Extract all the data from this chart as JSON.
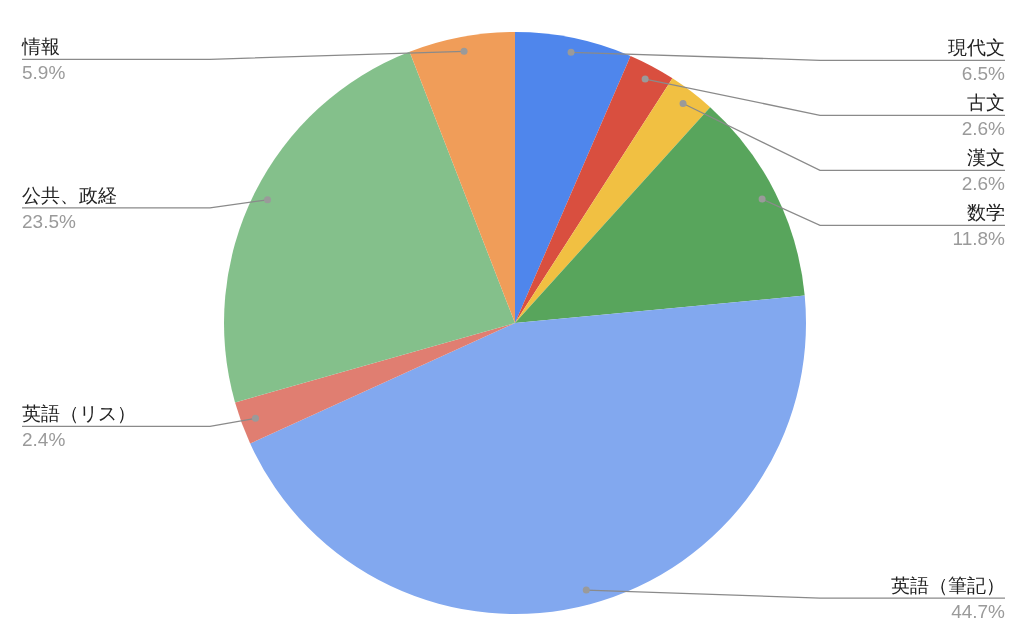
{
  "chart_data": {
    "type": "pie",
    "categories": [
      "現代文",
      "古文",
      "漢文",
      "数学",
      "英語（筆記）",
      "英語（リス）",
      "公共、政経",
      "情報"
    ],
    "values": [
      6.5,
      2.6,
      2.6,
      11.8,
      44.7,
      2.4,
      23.5,
      5.9
    ],
    "colors": [
      "#4f86ec",
      "#d94f3f",
      "#f1c042",
      "#58a55c",
      "#82a8ef",
      "#e07e71",
      "#84c08b",
      "#f09d59"
    ],
    "value_labels": [
      "6.5%",
      "2.6%",
      "2.6%",
      "11.8%",
      "44.7%",
      "2.4%",
      "23.5%",
      "5.9%"
    ]
  }
}
